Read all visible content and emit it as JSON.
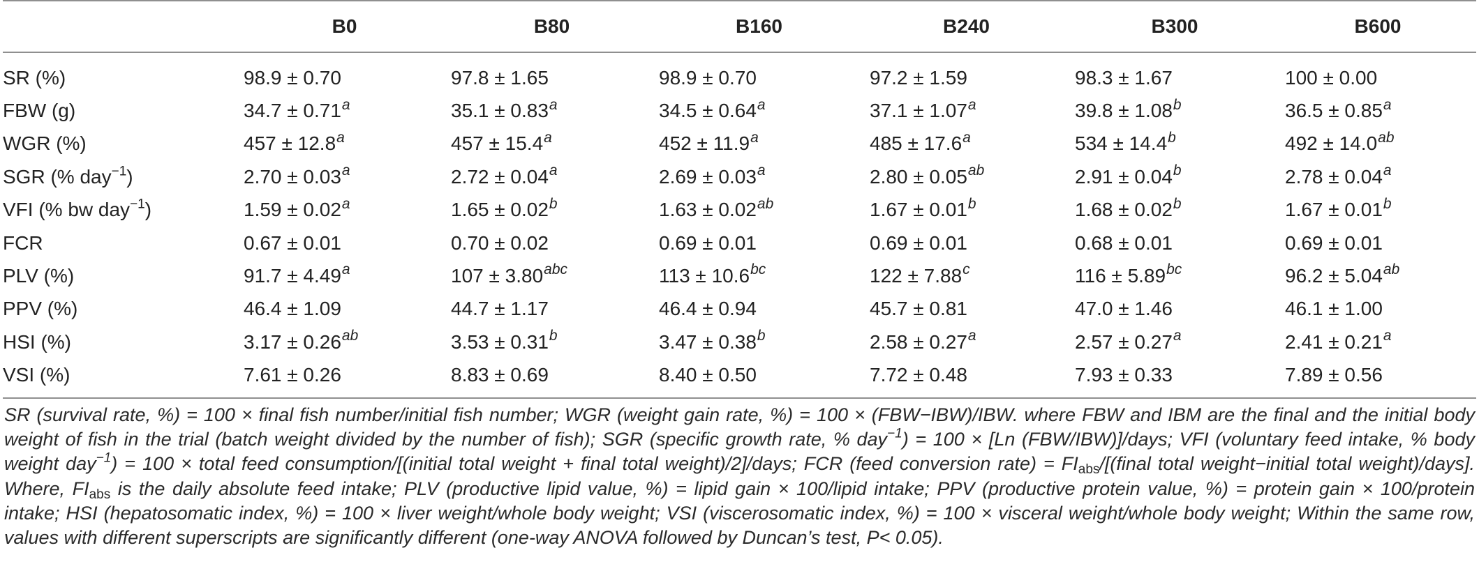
{
  "table": {
    "columns": [
      "",
      "B0",
      "B80",
      "B160",
      "B240",
      "B300",
      "B600"
    ],
    "rows": [
      {
        "label": "SR (%)",
        "cells": [
          {
            "value": "98.9 ± 0.70",
            "sig": ""
          },
          {
            "value": "97.8 ± 1.65",
            "sig": ""
          },
          {
            "value": "98.9 ± 0.70",
            "sig": ""
          },
          {
            "value": "97.2 ± 1.59",
            "sig": ""
          },
          {
            "value": "98.3 ± 1.67",
            "sig": ""
          },
          {
            "value": "100 ± 0.00",
            "sig": ""
          }
        ]
      },
      {
        "label": "FBW (g)",
        "cells": [
          {
            "value": "34.7 ± 0.71",
            "sig": "a"
          },
          {
            "value": "35.1 ± 0.83",
            "sig": "a"
          },
          {
            "value": "34.5 ± 0.64",
            "sig": "a"
          },
          {
            "value": "37.1 ± 1.07",
            "sig": "a"
          },
          {
            "value": "39.8 ± 1.08",
            "sig": "b"
          },
          {
            "value": "36.5 ± 0.85",
            "sig": "a"
          }
        ]
      },
      {
        "label": "WGR (%)",
        "cells": [
          {
            "value": "457 ± 12.8",
            "sig": "a"
          },
          {
            "value": "457 ± 15.4",
            "sig": "a"
          },
          {
            "value": "452 ± 11.9",
            "sig": "a"
          },
          {
            "value": "485 ± 17.6",
            "sig": "a"
          },
          {
            "value": "534 ± 14.4",
            "sig": "b"
          },
          {
            "value": "492 ± 14.0",
            "sig": "ab"
          }
        ]
      },
      {
        "label": "SGR (% day",
        "label_sup": "−1",
        "label_tail": ")",
        "cells": [
          {
            "value": "2.70 ± 0.03",
            "sig": "a"
          },
          {
            "value": "2.72 ± 0.04",
            "sig": "a"
          },
          {
            "value": "2.69 ± 0.03",
            "sig": "a"
          },
          {
            "value": "2.80 ± 0.05",
            "sig": "ab"
          },
          {
            "value": "2.91 ± 0.04",
            "sig": "b"
          },
          {
            "value": "2.78 ± 0.04",
            "sig": "a"
          }
        ]
      },
      {
        "label": "VFI (% bw day",
        "label_sup": "−1",
        "label_tail": ")",
        "cells": [
          {
            "value": "1.59 ± 0.02",
            "sig": "a"
          },
          {
            "value": "1.65 ± 0.02",
            "sig": "b"
          },
          {
            "value": "1.63 ± 0.02",
            "sig": "ab"
          },
          {
            "value": "1.67 ± 0.01",
            "sig": "b"
          },
          {
            "value": "1.68 ± 0.02",
            "sig": "b"
          },
          {
            "value": "1.67 ± 0.01",
            "sig": "b"
          }
        ]
      },
      {
        "label": "FCR",
        "cells": [
          {
            "value": "0.67 ± 0.01",
            "sig": ""
          },
          {
            "value": "0.70 ± 0.02",
            "sig": ""
          },
          {
            "value": "0.69 ± 0.01",
            "sig": ""
          },
          {
            "value": "0.69 ± 0.01",
            "sig": ""
          },
          {
            "value": "0.68 ± 0.01",
            "sig": ""
          },
          {
            "value": "0.69 ± 0.01",
            "sig": ""
          }
        ]
      },
      {
        "label": "PLV (%)",
        "cells": [
          {
            "value": "91.7 ± 4.49",
            "sig": "a"
          },
          {
            "value": "107 ± 3.80",
            "sig": "abc"
          },
          {
            "value": "113 ± 10.6",
            "sig": "bc"
          },
          {
            "value": "122 ± 7.88",
            "sig": "c"
          },
          {
            "value": "116 ± 5.89",
            "sig": "bc"
          },
          {
            "value": "96.2 ± 5.04",
            "sig": "ab"
          }
        ]
      },
      {
        "label": "PPV (%)",
        "cells": [
          {
            "value": "46.4 ± 1.09",
            "sig": ""
          },
          {
            "value": "44.7 ± 1.17",
            "sig": ""
          },
          {
            "value": "46.4 ± 0.94",
            "sig": ""
          },
          {
            "value": "45.7 ± 0.81",
            "sig": ""
          },
          {
            "value": "47.0 ± 1.46",
            "sig": ""
          },
          {
            "value": "46.1 ± 1.00",
            "sig": ""
          }
        ]
      },
      {
        "label": "HSI (%)",
        "cells": [
          {
            "value": "3.17 ± 0.26",
            "sig": "ab"
          },
          {
            "value": "3.53 ± 0.31",
            "sig": "b"
          },
          {
            "value": "3.47 ± 0.38",
            "sig": "b"
          },
          {
            "value": "2.58 ± 0.27",
            "sig": "a"
          },
          {
            "value": "2.57 ± 0.27",
            "sig": "a"
          },
          {
            "value": "2.41 ± 0.21",
            "sig": "a"
          }
        ]
      },
      {
        "label": "VSI (%)",
        "cells": [
          {
            "value": "7.61 ± 0.26",
            "sig": ""
          },
          {
            "value": "8.83 ± 0.69",
            "sig": ""
          },
          {
            "value": "8.40 ± 0.50",
            "sig": ""
          },
          {
            "value": "7.72 ± 0.48",
            "sig": ""
          },
          {
            "value": "7.93 ± 0.33",
            "sig": ""
          },
          {
            "value": "7.89 ± 0.56",
            "sig": ""
          }
        ]
      }
    ]
  },
  "footnote": {
    "p1": "SR (survival rate, %) = 100 × final fish number/initial fish number; WGR (weight gain rate, %) = 100 × (FBW−IBW)/IBW. where FBW and IBM are the final and the initial body weight of fish in the trial (batch weight divided by the number of fish); SGR (specific growth rate, % day",
    "sup1": "−1",
    "p2": ") = 100 × [Ln (FBW/IBW)]/days; VFI (voluntary feed intake, % body weight day",
    "sup2": "−1",
    "p3": ") = 100 × total feed consumption/[(initial total weight + final total weight)/2]/days; FCR (feed conversion rate) = FI",
    "sub1": "abs",
    "p4": "/[(final total weight−initial total weight)/days]. Where, FI",
    "sub2": "abs",
    "p5": " is the daily absolute feed intake; PLV (productive lipid value, %) = lipid gain × 100/lipid intake; PPV (productive protein value, %) = protein gain × 100/protein intake; HSI (hepatosomatic index, %) = 100 × liver weight/whole body weight; VSI (viscerosomatic index, %) = 100 × visceral weight/whole body weight; Within the same row, values with different superscripts are significantly different (one-way ANOVA followed by Duncan’s test, P< 0.05)."
  }
}
